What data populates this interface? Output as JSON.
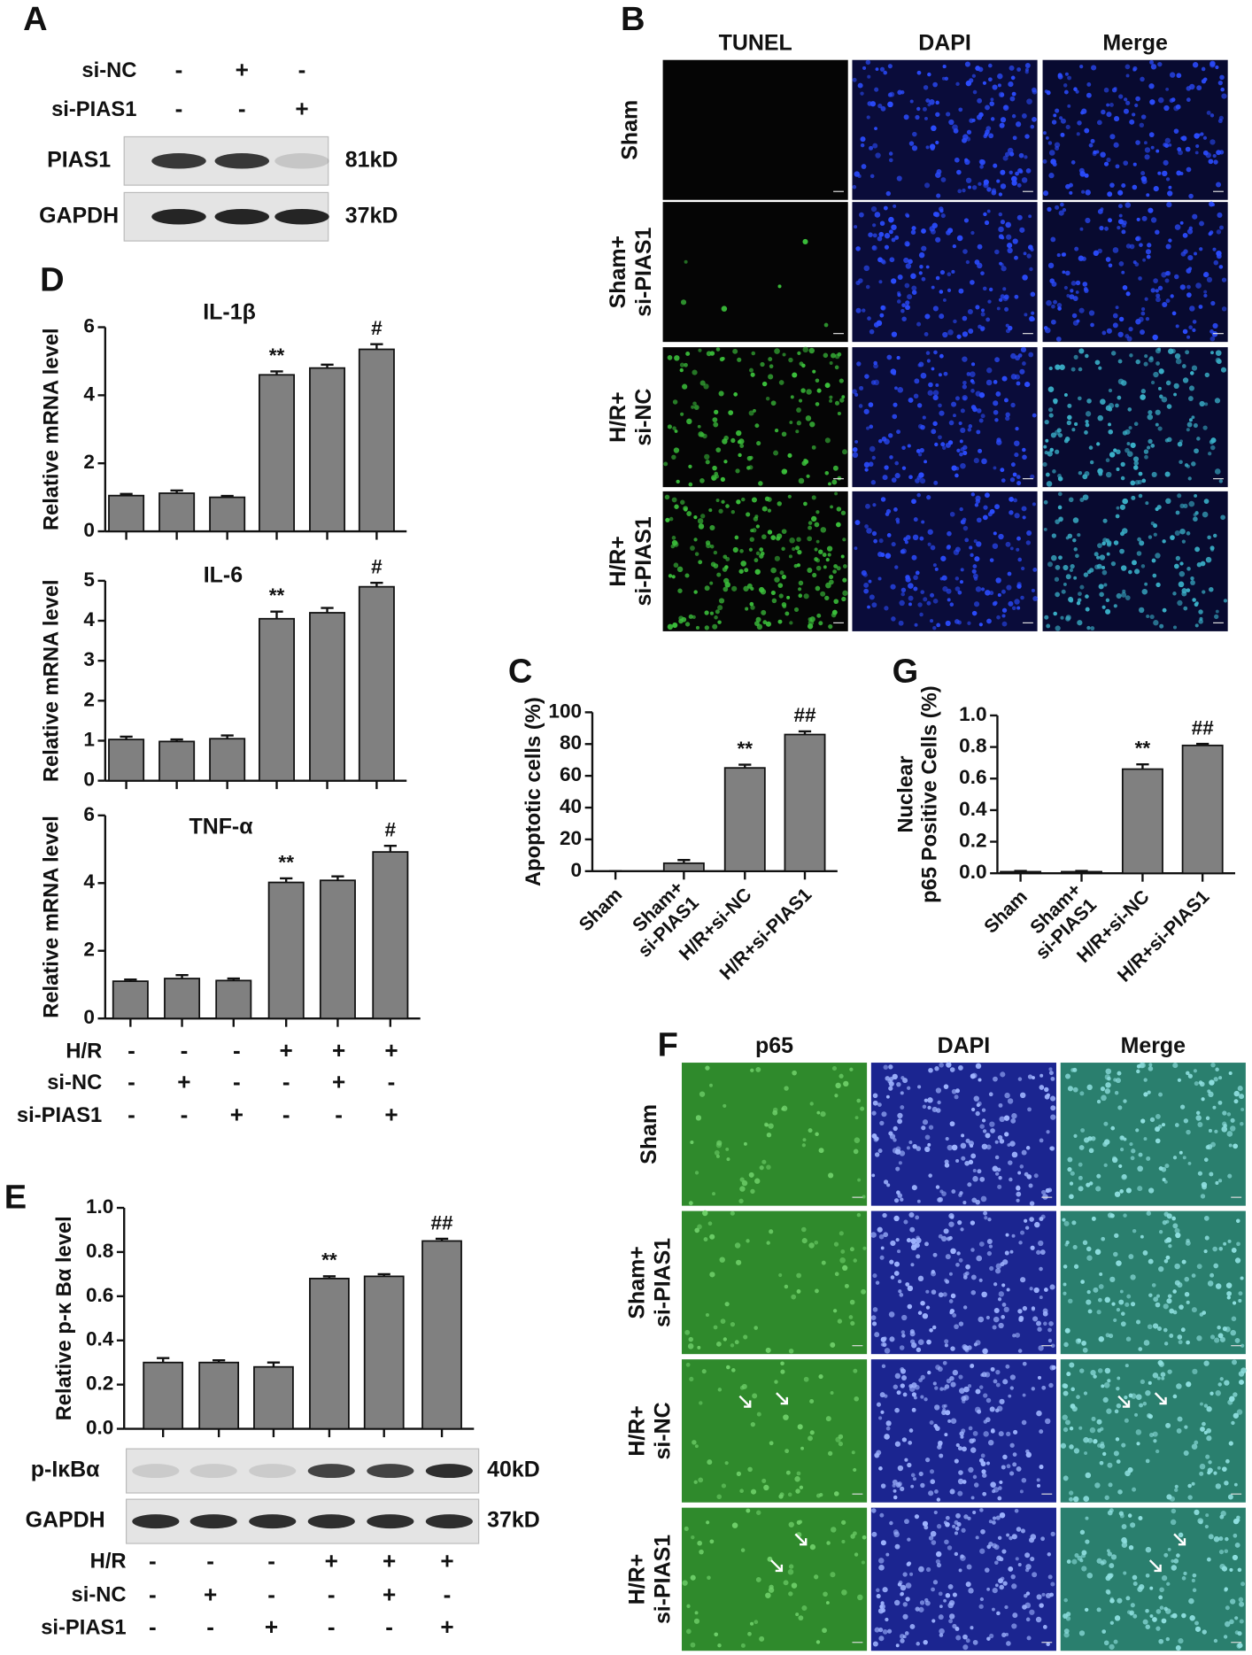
{
  "panel_labels": [
    "A",
    "B",
    "C",
    "D",
    "E",
    "F",
    "G"
  ],
  "blot_a": {
    "conditions": [
      {
        "label": "si-NC",
        "signs": [
          "-",
          "+",
          "-"
        ]
      },
      {
        "label": "si-PIAS1",
        "signs": [
          "-",
          "-",
          "+"
        ]
      }
    ],
    "bands": [
      {
        "label": "PIAS1",
        "size": "81kD"
      },
      {
        "label": "GAPDH",
        "size": "37kD"
      }
    ]
  },
  "tunel_images": {
    "columns": [
      "TUNEL",
      "DAPI",
      "Merge"
    ],
    "rows": [
      "Sham",
      "Sham+\nsi-PIAS1",
      "H/R+\nsi-NC",
      "H/R+\nsi-PIAS1"
    ]
  },
  "p65_images": {
    "columns": [
      "p65",
      "DAPI",
      "Merge"
    ],
    "rows": [
      "Sham",
      "Sham+\nsi-PIAS1",
      "H/R+\nsi-NC",
      "H/R+\nsi-PIAS1"
    ]
  },
  "conditions_d": [
    {
      "label": "H/R",
      "signs": [
        "-",
        "-",
        "-",
        "+",
        "+",
        "+"
      ]
    },
    {
      "label": "si-NC",
      "signs": [
        "-",
        "+",
        "-",
        "-",
        "+",
        "-"
      ]
    },
    {
      "label": "si-PIAS1",
      "signs": [
        "-",
        "-",
        "+",
        "-",
        "-",
        "+"
      ]
    }
  ],
  "blot_e": {
    "bands": [
      {
        "label": "p-IκBα",
        "size": "40kD"
      },
      {
        "label": "GAPDH",
        "size": "37kD"
      }
    ],
    "conditions": [
      {
        "label": "H/R",
        "signs": [
          "-",
          "-",
          "-",
          "+",
          "+",
          "+"
        ]
      },
      {
        "label": "si-NC",
        "signs": [
          "-",
          "+",
          "-",
          "-",
          "+",
          "-"
        ]
      },
      {
        "label": "si-PIAS1",
        "signs": [
          "-",
          "-",
          "+",
          "-",
          "-",
          "+"
        ]
      }
    ]
  },
  "chart_data": [
    {
      "type": "bar",
      "title": "IL-1β",
      "ylabel": "Relative mRNA level",
      "color": "#808080",
      "categories": [
        null,
        null,
        null,
        null,
        null,
        null
      ],
      "values": [
        1.05,
        1.12,
        1.0,
        4.6,
        4.8,
        5.35
      ],
      "errors": [
        0.05,
        0.08,
        0.04,
        0.1,
        0.1,
        0.15
      ],
      "annotations": [
        null,
        null,
        null,
        "**",
        null,
        "#"
      ],
      "ylim": [
        0,
        6
      ],
      "yticks": [
        0,
        2,
        4,
        6
      ]
    },
    {
      "type": "bar",
      "title": "IL-6",
      "ylabel": "Relative mRNA level",
      "color": "#808080",
      "categories": [
        null,
        null,
        null,
        null,
        null,
        null
      ],
      "values": [
        1.03,
        0.98,
        1.05,
        4.05,
        4.2,
        4.85
      ],
      "errors": [
        0.07,
        0.05,
        0.08,
        0.18,
        0.12,
        0.1
      ],
      "annotations": [
        null,
        null,
        null,
        "**",
        null,
        "#"
      ],
      "ylim": [
        0,
        5
      ],
      "yticks": [
        0,
        1,
        2,
        3,
        4,
        5
      ]
    },
    {
      "type": "bar",
      "title": "TNF-α",
      "ylabel": "Relative mRNA level",
      "color": "#808080",
      "categories": [
        null,
        null,
        null,
        null,
        null,
        null
      ],
      "values": [
        1.1,
        1.18,
        1.12,
        4.02,
        4.08,
        4.92
      ],
      "errors": [
        0.05,
        0.1,
        0.06,
        0.12,
        0.12,
        0.18
      ],
      "annotations": [
        null,
        null,
        null,
        "**",
        null,
        "#"
      ],
      "ylim": [
        0,
        6
      ],
      "yticks": [
        0,
        2,
        4,
        6
      ]
    },
    {
      "type": "bar",
      "ylabel": "Relative p-κ Bα level",
      "color": "#808080",
      "categories": [
        null,
        null,
        null,
        null,
        null,
        null
      ],
      "values": [
        0.3,
        0.3,
        0.28,
        0.68,
        0.69,
        0.85
      ],
      "errors": [
        0.02,
        0.01,
        0.02,
        0.01,
        0.01,
        0.01
      ],
      "annotations": [
        null,
        null,
        null,
        "**",
        null,
        "##"
      ],
      "ylim": [
        0,
        1
      ],
      "yticks": [
        {
          "value": 0,
          "label": "0.0"
        },
        {
          "value": 0.2,
          "label": "0.2"
        },
        {
          "value": 0.4,
          "label": "0.4"
        },
        {
          "value": 0.6,
          "label": "0.6"
        },
        {
          "value": 0.8,
          "label": "0.8"
        },
        {
          "value": 1,
          "label": "1.0"
        }
      ]
    },
    {
      "type": "bar",
      "ylabel": "Apoptotic cells (%)",
      "color": "#808080",
      "categories": [
        "Sham",
        "Sham+\nsi-PIAS1",
        "H/R+si-NC",
        "H/R+si-PIAS1"
      ],
      "values": [
        0,
        5,
        65,
        86
      ],
      "errors": [
        0,
        2,
        2,
        2
      ],
      "annotations": [
        null,
        null,
        "**",
        "##"
      ],
      "ylim": [
        0,
        100
      ],
      "yticks": [
        0,
        20,
        40,
        60,
        80,
        100
      ]
    },
    {
      "type": "bar",
      "ylabel": "Nuclear\np65 Positive Cells (%)",
      "color": "#808080",
      "categories": [
        "Sham",
        "Sham+\nsi-PIAS1",
        "H/R+si-NC",
        "H/R+si-PIAS1"
      ],
      "values": [
        0.01,
        0.01,
        0.66,
        0.81
      ],
      "errors": [
        0.005,
        0.005,
        0.03,
        0.01
      ],
      "annotations": [
        null,
        null,
        "**",
        "##"
      ],
      "ylim": [
        0,
        1
      ],
      "yticks": [
        {
          "value": 0,
          "label": "0.0"
        },
        {
          "value": 0.2,
          "label": "0.2"
        },
        {
          "value": 0.4,
          "label": "0.4"
        },
        {
          "value": 0.6,
          "label": "0.6"
        },
        {
          "value": 0.8,
          "label": "0.8"
        },
        {
          "value": 1,
          "label": "1.0"
        }
      ]
    }
  ]
}
